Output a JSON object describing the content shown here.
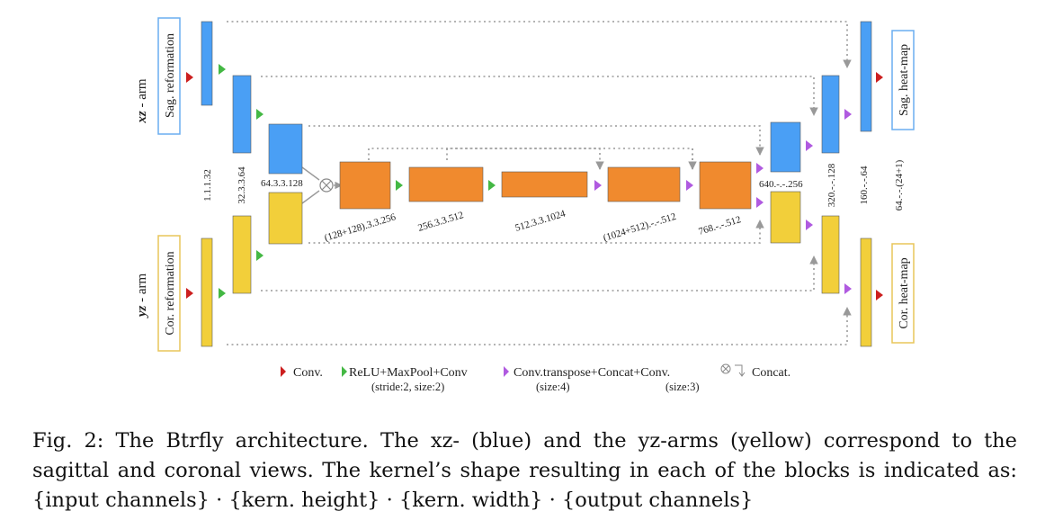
{
  "arms": {
    "xz": {
      "name": "xz",
      "suffix": " - arm",
      "input_label": "Sag.  reformation",
      "output_label": "Sag.  heat-map",
      "color": "#4a9ff5"
    },
    "yz": {
      "name": "yz",
      "suffix": " - arm",
      "input_label": "Cor.  reformation",
      "output_label": "Cor.  heat-map",
      "color": "#f2cf3a"
    }
  },
  "kernel_labels": {
    "k1": "1.1.1.32",
    "k2": "32.3.3.64",
    "k3": "64.3.3.128",
    "k4": "(128+128).3.3.256",
    "k5": "256.3.3.512",
    "k6": "512.3.3.1024",
    "k7": "(1024+512).-.-.512",
    "k8": "768.-.-.512",
    "k9": "640.-.-.256",
    "k10": "320.-.-.128",
    "k11": "160.-.-.64",
    "k12": "64.-.-.(24+1)"
  },
  "legend": {
    "conv": "Conv.",
    "relu": "ReLU+MaxPool+Conv",
    "relu_sub": "(stride:2, size:2)",
    "convt": "Conv.transpose+Concat+Conv.",
    "convt_sub1": "(size:4)",
    "convt_sub2": "(size:3)",
    "concat": "Concat."
  },
  "colors": {
    "blue": "#4a9ff5",
    "yellow": "#f2cf3a",
    "orange": "#f08a2e",
    "red_arrow": "#cc1f1f",
    "green_arrow": "#44b844",
    "purple_arrow": "#b05ae0",
    "skip_line": "#999999"
  },
  "caption": "Fig. 2: The Btrfly architecture. The xz- (blue) and the yz-arms (yellow) correspond to the sagittal and coronal views. The kernel’s shape resulting in each of the blocks is indicated as: {input channels} · {kern. height} · {kern. width} · {output channels}"
}
